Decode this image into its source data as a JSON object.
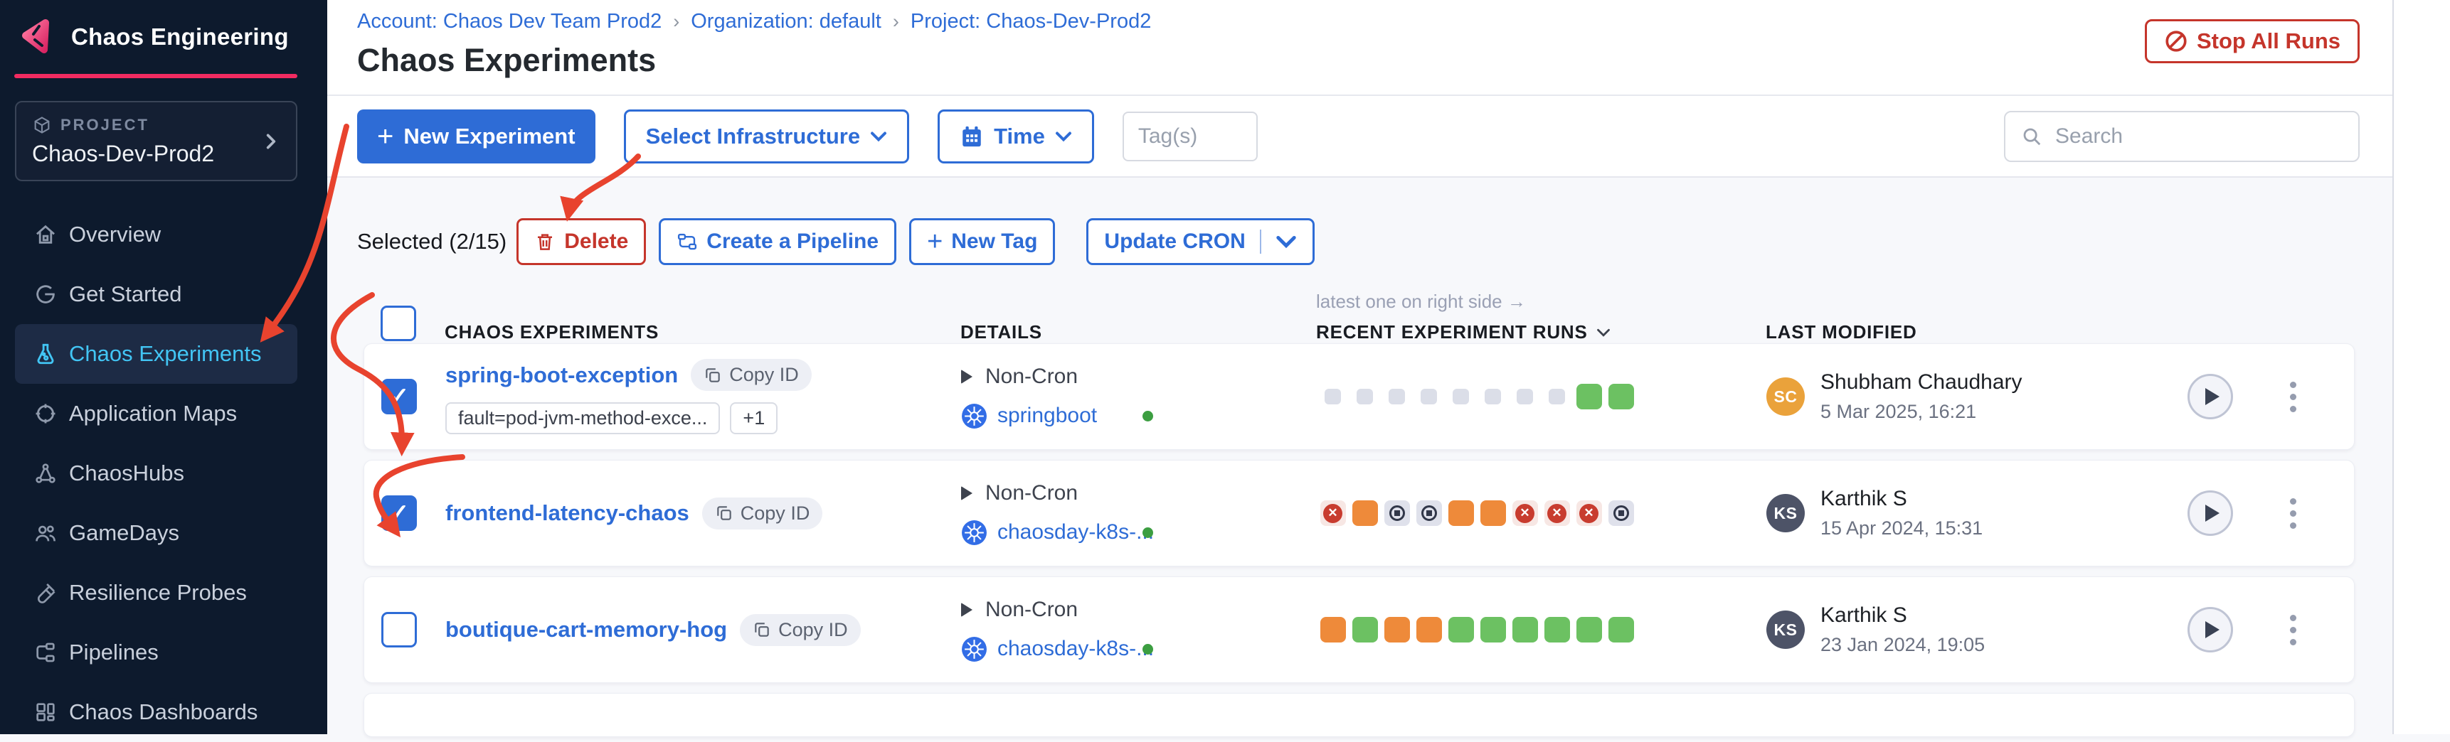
{
  "sidebar": {
    "app_title": "Chaos Engineering",
    "project_label": "PROJECT",
    "project_name": "Chaos-Dev-Prod2",
    "nav": [
      {
        "label": "Overview",
        "icon": "home",
        "active": false
      },
      {
        "label": "Get Started",
        "icon": "get-started",
        "active": false
      },
      {
        "label": "Chaos Experiments",
        "icon": "flask",
        "active": true
      },
      {
        "label": "Application Maps",
        "icon": "application-maps",
        "active": false
      },
      {
        "label": "ChaosHubs",
        "icon": "chaos-hubs",
        "active": false
      },
      {
        "label": "GameDays",
        "icon": "gamedays",
        "active": false
      },
      {
        "label": "Resilience Probes",
        "icon": "resilience-probes",
        "active": false
      },
      {
        "label": "Pipelines",
        "icon": "pipelines",
        "active": false
      },
      {
        "label": "Chaos Dashboards",
        "icon": "dashboards",
        "active": false
      }
    ]
  },
  "header": {
    "breadcrumb": [
      "Account: Chaos Dev Team Prod2",
      "Organization: default",
      "Project: Chaos-Dev-Prod2"
    ],
    "separator": "›",
    "title": "Chaos Experiments",
    "stop_all_runs": "Stop All Runs"
  },
  "toolbar": {
    "new_experiment": "New Experiment",
    "plus_glyph": "+",
    "select_infrastructure": "Select Infrastructure",
    "time": "Time",
    "tags_placeholder": "Tag(s)",
    "search_placeholder": "Search"
  },
  "selection": {
    "selected_label": "Selected (2/15)",
    "delete": "Delete",
    "create_pipeline": "Create a Pipeline",
    "new_tag": "New Tag",
    "update_cron": "Update CRON"
  },
  "table": {
    "runs_hint": "latest one on right side →",
    "columns": {
      "experiments": "CHAOS EXPERIMENTS",
      "details": "DETAILS",
      "runs": "RECENT EXPERIMENT RUNS",
      "modified": "LAST MODIFIED"
    },
    "copy_id_label": "Copy ID",
    "rows": [
      {
        "name": "spring-boot-exception",
        "checked": true,
        "tags": [
          "fault=pod-jvm-method-exce...",
          "+1"
        ],
        "cron": "Non-Cron",
        "infra": "springboot",
        "runs": [
          "none",
          "none",
          "none",
          "none",
          "none",
          "none",
          "none",
          "none",
          "passed",
          "passed"
        ],
        "user": {
          "initials": "SC",
          "name": "Shubham Chaudhary",
          "date": "5 Mar 2025, 16:21",
          "color": "#eaa23b"
        }
      },
      {
        "name": "frontend-latency-chaos",
        "checked": true,
        "tags": [],
        "cron": "Non-Cron",
        "infra": "chaosday-k8s-...",
        "runs": [
          "failed",
          "running",
          "stopped",
          "stopped",
          "running",
          "running",
          "failed",
          "failed",
          "failed",
          "stopped"
        ],
        "user": {
          "initials": "KS",
          "name": "Karthik S",
          "date": "15 Apr 2024, 15:31",
          "color": "#4d5367"
        }
      },
      {
        "name": "boutique-cart-memory-hog",
        "checked": false,
        "tags": [],
        "cron": "Non-Cron",
        "infra": "chaosday-k8s-...",
        "runs": [
          "running",
          "passed",
          "running",
          "running",
          "passed",
          "passed",
          "passed",
          "passed",
          "passed",
          "passed"
        ],
        "user": {
          "initials": "KS",
          "name": "Karthik S",
          "date": "23 Jan 2024, 19:05",
          "color": "#4d5367"
        }
      }
    ]
  },
  "colors": {
    "accent_blue": "#2e6cd6",
    "brand_pink": "#f12b61",
    "danger_red": "#c5352b",
    "run_passed": "#6cc162",
    "run_running": "#ee8a3a",
    "run_failed": "#c83c2f",
    "active_nav": "#42c5f4",
    "annotation_red": "#e8432e"
  }
}
